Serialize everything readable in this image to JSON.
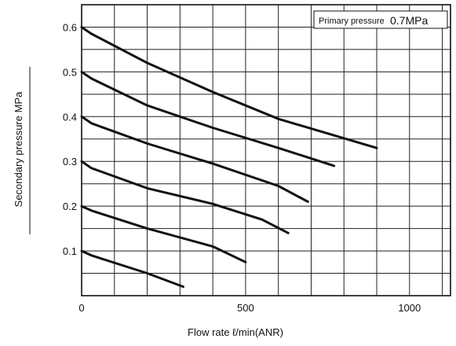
{
  "chart_data": {
    "type": "line",
    "title": "",
    "xlabel": "Flow rate ℓ/min(ANR)",
    "ylabel": "Secondary pressure MPa",
    "xlim": [
      0,
      1125
    ],
    "ylim": [
      0,
      0.65
    ],
    "xticks": [
      0,
      500,
      1000
    ],
    "xtick_labels": [
      "0",
      "500",
      "1000"
    ],
    "yticks": [
      0.1,
      0.2,
      0.3,
      0.4,
      0.5,
      0.6
    ],
    "ytick_labels": [
      "0.1",
      "0.2",
      "0.3",
      "0.4",
      "0.5",
      "0.6"
    ],
    "grid": true,
    "annotation": {
      "label": "Primary pressure",
      "value": "0.7MPa"
    },
    "series": [
      {
        "x": [
          0,
          30,
          200,
          400,
          600,
          900
        ],
        "y": [
          0.6,
          0.585,
          0.52,
          0.455,
          0.395,
          0.33
        ]
      },
      {
        "x": [
          0,
          30,
          200,
          400,
          600,
          770
        ],
        "y": [
          0.5,
          0.485,
          0.425,
          0.375,
          0.33,
          0.29
        ]
      },
      {
        "x": [
          0,
          30,
          200,
          400,
          600,
          690
        ],
        "y": [
          0.4,
          0.385,
          0.34,
          0.295,
          0.245,
          0.21
        ]
      },
      {
        "x": [
          0,
          30,
          200,
          400,
          550,
          630
        ],
        "y": [
          0.3,
          0.285,
          0.24,
          0.205,
          0.17,
          0.14
        ]
      },
      {
        "x": [
          0,
          30,
          200,
          400,
          500
        ],
        "y": [
          0.2,
          0.19,
          0.15,
          0.11,
          0.075
        ]
      },
      {
        "x": [
          0,
          30,
          200,
          310
        ],
        "y": [
          0.1,
          0.09,
          0.05,
          0.02
        ]
      }
    ]
  }
}
